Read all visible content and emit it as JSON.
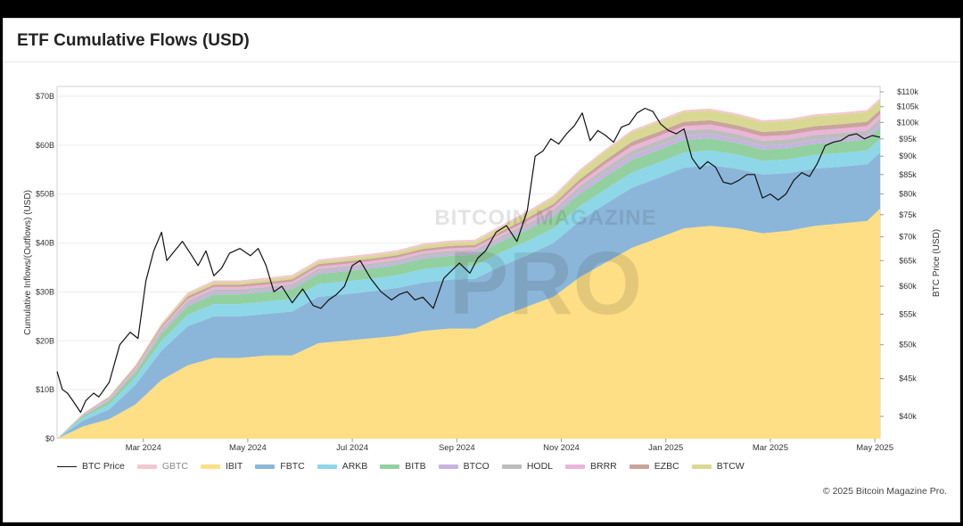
{
  "title": "ETF Cumulative Flows (USD)",
  "copyright": "© 2025 Bitcoin Magazine Pro.",
  "watermark": {
    "line1": "BITCOIN MAGAZINE",
    "line2": "PRO"
  },
  "chart_data": {
    "type": "area",
    "stacked": true,
    "ylabel": "Cumulative Inflows/(Outflows) (USD)",
    "y2label": "BTC Price (USD)",
    "ylim": [
      0,
      72
    ],
    "y2_ticks": [
      40000,
      45000,
      50000,
      55000,
      60000,
      65000,
      70000,
      75000,
      80000,
      85000,
      90000,
      95000,
      100000,
      105000,
      110000
    ],
    "y2_tick_labels": [
      "$40k",
      "$45k",
      "$50k",
      "$55k",
      "$60k",
      "$65k",
      "$70k",
      "$75k",
      "$80k",
      "$85k",
      "$90k",
      "$95k",
      "$100k",
      "$105k",
      "$110k"
    ],
    "y_ticks": [
      0,
      10,
      20,
      30,
      40,
      50,
      60,
      70
    ],
    "y_tick_labels": [
      "$0",
      "$10B",
      "$20B",
      "$30B",
      "$40B",
      "$50B",
      "$60B",
      "$70B"
    ],
    "x_tick_labels": [
      "Mar 2024",
      "May 2024",
      "Jul 2024",
      "Sep 2024",
      "Nov 2024",
      "Jan 2025",
      "Mar 2025",
      "May 2025"
    ],
    "x_tick_months": [
      1.65,
      3.65,
      5.65,
      7.65,
      9.65,
      11.65,
      13.65,
      15.65
    ],
    "x_range_months": [
      0,
      15.75
    ],
    "months": [
      0,
      0.5,
      1,
      1.5,
      2,
      2.5,
      3,
      3.5,
      4,
      4.5,
      5,
      5.5,
      6,
      6.5,
      7,
      7.5,
      8,
      8.5,
      9,
      9.5,
      10,
      10.5,
      11,
      11.5,
      12,
      12.5,
      13,
      13.5,
      14,
      14.5,
      15,
      15.5,
      15.75
    ],
    "series": [
      {
        "name": "BTC Price",
        "type": "line",
        "color": "#111111",
        "axis": "right",
        "price_months": [
          0,
          0.1,
          0.2,
          0.3,
          0.45,
          0.55,
          0.7,
          0.8,
          1.0,
          1.2,
          1.4,
          1.55,
          1.7,
          1.85,
          2.0,
          2.1,
          2.25,
          2.4,
          2.55,
          2.7,
          2.85,
          3.0,
          3.15,
          3.3,
          3.5,
          3.7,
          3.85,
          4.0,
          4.15,
          4.3,
          4.5,
          4.7,
          4.9,
          5.05,
          5.2,
          5.35,
          5.5,
          5.65,
          5.8,
          6.0,
          6.2,
          6.4,
          6.55,
          6.7,
          6.85,
          7.0,
          7.2,
          7.4,
          7.55,
          7.7,
          7.9,
          8.05,
          8.2,
          8.4,
          8.6,
          8.8,
          9.0,
          9.15,
          9.3,
          9.45,
          9.6,
          9.75,
          9.9,
          10.05,
          10.2,
          10.35,
          10.5,
          10.65,
          10.8,
          10.95,
          11.1,
          11.25,
          11.4,
          11.55,
          11.7,
          11.85,
          12.0,
          12.15,
          12.3,
          12.45,
          12.6,
          12.75,
          12.9,
          13.05,
          13.2,
          13.35,
          13.5,
          13.65,
          13.8,
          13.95,
          14.1,
          14.25,
          14.4,
          14.55,
          14.7,
          14.85,
          15.0,
          15.15,
          15.3,
          15.45,
          15.6,
          15.75
        ],
        "price_values": [
          46000,
          43500,
          43000,
          42000,
          40500,
          42000,
          43000,
          42500,
          44500,
          50000,
          52000,
          51000,
          61000,
          67000,
          71000,
          65000,
          67000,
          69000,
          66500,
          64000,
          67000,
          62000,
          63500,
          66500,
          67500,
          66000,
          67500,
          64000,
          59000,
          60000,
          57000,
          59500,
          56500,
          56000,
          57500,
          58500,
          60000,
          64000,
          65000,
          61500,
          59000,
          57500,
          58500,
          59000,
          57500,
          58000,
          56000,
          61500,
          63000,
          64500,
          62500,
          65500,
          67000,
          71000,
          72500,
          69000,
          76000,
          90000,
          91500,
          95000,
          93500,
          96500,
          99000,
          103000,
          94500,
          97500,
          96000,
          94000,
          98500,
          99500,
          103000,
          104500,
          103500,
          99500,
          97500,
          96500,
          98000,
          89500,
          86500,
          88500,
          87000,
          83000,
          82500,
          83500,
          85000,
          85000,
          79000,
          80000,
          78500,
          80000,
          83500,
          85500,
          84500,
          88000,
          93000,
          94000,
          94500,
          96000,
          96500,
          95000,
          96000,
          95500
        ]
      },
      {
        "name": "GBTC",
        "color": "#f2c9cf",
        "values": [
          0,
          0.05,
          0.1,
          0.15,
          0.2,
          0.3,
          0.35,
          0.35,
          0.4,
          0.4,
          0.4,
          0.4,
          0.4,
          0.4,
          0.4,
          0.4,
          0.4,
          0.4,
          0.4,
          0.4,
          0.4,
          0.4,
          0.4,
          0.4,
          0.4,
          0.4,
          0.4,
          0.4,
          0.4,
          0.4,
          0.4,
          0.4,
          0.4
        ]
      },
      {
        "name": "IBIT",
        "color": "#fedf85",
        "values": [
          0,
          2.5,
          4,
          7,
          12,
          15,
          16.5,
          16.5,
          17,
          17,
          19.5,
          20,
          20.5,
          21,
          22,
          22.5,
          22.5,
          25,
          27,
          29,
          33,
          36,
          39,
          41,
          43,
          43.5,
          43,
          42,
          42.5,
          43.5,
          44,
          44.5,
          47
        ]
      },
      {
        "name": "FBTC",
        "color": "#8bb6d9",
        "values": [
          0,
          1.2,
          2,
          4,
          6,
          8,
          8.5,
          8.5,
          8.5,
          9,
          9.5,
          9.5,
          9.6,
          9.8,
          9.9,
          10,
          10.2,
          10.3,
          10.5,
          11,
          11.5,
          12,
          12.3,
          12.3,
          12.4,
          12.4,
          12.2,
          12,
          11.8,
          11.7,
          11.6,
          11.6,
          11.5
        ]
      },
      {
        "name": "ARKB",
        "color": "#8dd7e8",
        "values": [
          0,
          0.6,
          1,
          1.5,
          2,
          2.3,
          2.5,
          2.5,
          2.5,
          2.6,
          2.6,
          2.6,
          2.6,
          2.6,
          2.7,
          2.7,
          2.7,
          2.8,
          2.9,
          3,
          3,
          3,
          3.1,
          3.1,
          3.1,
          3,
          2.9,
          2.8,
          2.8,
          2.8,
          2.8,
          2.8,
          2.8
        ]
      },
      {
        "name": "BITB",
        "color": "#93d0a0",
        "values": [
          0,
          0.4,
          0.7,
          1,
          1.5,
          1.8,
          2,
          2,
          2,
          2,
          2.1,
          2.1,
          2.1,
          2.1,
          2.2,
          2.2,
          2.2,
          2.2,
          2.3,
          2.4,
          2.5,
          2.6,
          2.6,
          2.6,
          2.6,
          2.5,
          2.4,
          2.3,
          2.3,
          2.3,
          2.3,
          2.3,
          2.3
        ]
      },
      {
        "name": "BTCO",
        "color": "#c6b4df",
        "values": [
          0,
          0.1,
          0.2,
          0.3,
          0.4,
          0.5,
          0.5,
          0.5,
          0.5,
          0.5,
          0.5,
          0.5,
          0.5,
          0.5,
          0.5,
          0.5,
          0.5,
          0.5,
          0.6,
          0.7,
          0.8,
          0.9,
          0.9,
          0.9,
          0.9,
          0.9,
          0.8,
          0.8,
          0.8,
          0.8,
          0.8,
          0.8,
          0.8
        ]
      },
      {
        "name": "HODL",
        "color": "#bdbdbd",
        "values": [
          0,
          0.1,
          0.2,
          0.3,
          0.4,
          0.5,
          0.5,
          0.5,
          0.5,
          0.5,
          0.5,
          0.5,
          0.5,
          0.5,
          0.5,
          0.5,
          0.5,
          0.6,
          0.6,
          0.7,
          0.8,
          0.9,
          1,
          1,
          1,
          1,
          1,
          1,
          1,
          1,
          1,
          1,
          1
        ]
      },
      {
        "name": "BRRR",
        "color": "#eab5d9",
        "values": [
          0,
          0.1,
          0.2,
          0.3,
          0.4,
          0.5,
          0.5,
          0.5,
          0.5,
          0.5,
          0.5,
          0.5,
          0.5,
          0.5,
          0.5,
          0.5,
          0.5,
          0.5,
          0.6,
          0.6,
          0.7,
          0.8,
          0.9,
          0.9,
          0.9,
          0.9,
          0.9,
          0.9,
          0.9,
          0.9,
          0.9,
          0.9,
          0.9
        ]
      },
      {
        "name": "EZBC",
        "color": "#c9a39c",
        "values": [
          0,
          0.1,
          0.2,
          0.3,
          0.4,
          0.5,
          0.5,
          0.5,
          0.5,
          0.5,
          0.5,
          0.5,
          0.5,
          0.5,
          0.5,
          0.5,
          0.5,
          0.5,
          0.6,
          0.6,
          0.7,
          0.8,
          0.9,
          0.9,
          0.9,
          0.9,
          0.9,
          0.9,
          0.9,
          0.9,
          0.9,
          0.9,
          0.9
        ]
      },
      {
        "name": "BTCW",
        "color": "#d9d893",
        "values": [
          0,
          0.05,
          0.1,
          0.2,
          0.3,
          0.5,
          0.5,
          0.5,
          0.5,
          0.5,
          0.5,
          0.6,
          0.6,
          0.6,
          0.7,
          0.7,
          0.7,
          0.8,
          1,
          1.3,
          1.6,
          1.8,
          2,
          2,
          2,
          2,
          2,
          2,
          2,
          2,
          2,
          2,
          2
        ]
      }
    ]
  }
}
